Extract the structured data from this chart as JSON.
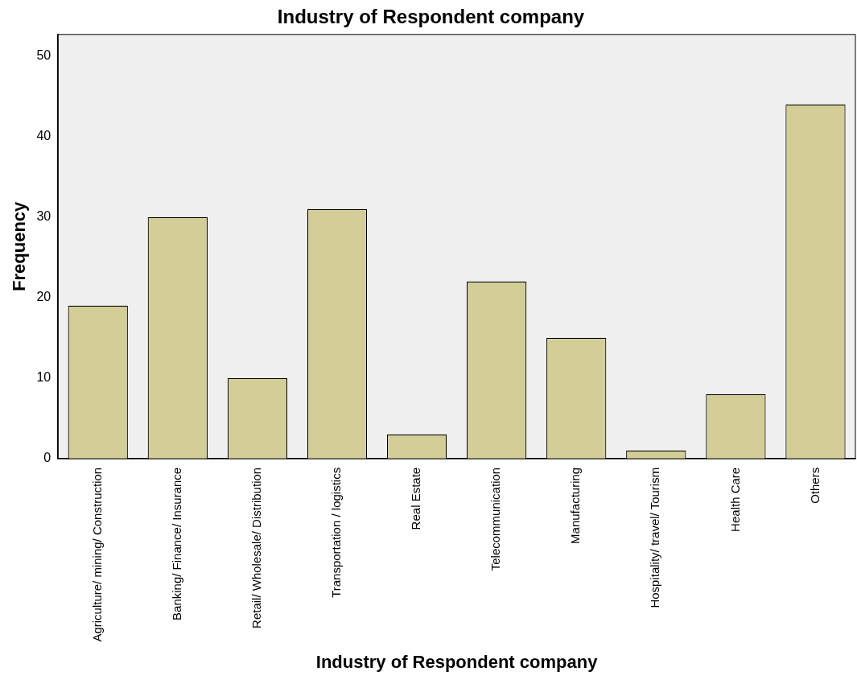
{
  "chart_data": {
    "type": "bar",
    "title": "Industry of Respondent company",
    "xlabel": "Industry of Respondent company",
    "ylabel": "Frequency",
    "categories": [
      "Agriculture/ mining/ Construction",
      "Banking/ Finance/ Insurance",
      "Retail/ Wholesale/ Distribution",
      "Transportation / logistics",
      "Real Estate",
      "Telecommunication",
      "Manufacturing",
      "Hospitality/ travel/ Tourism",
      "Health Care",
      "Others"
    ],
    "values": [
      19,
      30,
      10,
      31,
      3,
      22,
      15,
      1,
      8,
      44
    ],
    "color": "#d3ce97",
    "ylim": [
      0,
      52.7
    ],
    "yticks": [
      0,
      10,
      20,
      30,
      40,
      50
    ],
    "grid": false,
    "legend": false
  }
}
